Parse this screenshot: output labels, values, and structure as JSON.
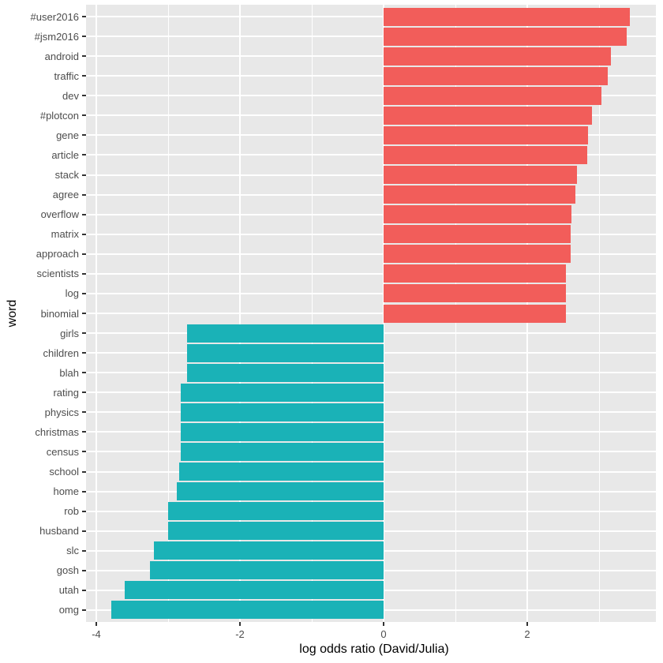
{
  "chart_data": {
    "type": "bar",
    "orientation": "horizontal",
    "xlabel": "log odds ratio (David/Julia)",
    "ylabel": "word",
    "xlim": [
      -4.14,
      3.79
    ],
    "x_major_ticks": [
      -4,
      -2,
      0,
      2
    ],
    "x_major_tick_labels": [
      "-4",
      "-2",
      "0",
      "2"
    ],
    "x_minor_ticks": [
      -3,
      -1,
      1,
      3
    ],
    "grid": "on",
    "legend": "none",
    "categories": [
      "#user2016",
      "#jsm2016",
      "android",
      "traffic",
      "dev",
      "#plotcon",
      "gene",
      "article",
      "stack",
      "agree",
      "overflow",
      "matrix",
      "approach",
      "scientists",
      "log",
      "binomial",
      "girls",
      "children",
      "blah",
      "rating",
      "physics",
      "christmas",
      "census",
      "school",
      "home",
      "rob",
      "husband",
      "slc",
      "gosh",
      "utah",
      "omg"
    ],
    "values": [
      3.43,
      3.39,
      3.16,
      3.12,
      3.03,
      2.9,
      2.85,
      2.84,
      2.69,
      2.67,
      2.61,
      2.6,
      2.6,
      2.54,
      2.54,
      2.54,
      -2.74,
      -2.74,
      -2.74,
      -2.82,
      -2.82,
      -2.82,
      -2.82,
      -2.85,
      -2.88,
      -3.0,
      -3.0,
      -3.2,
      -3.25,
      -3.6,
      -3.79
    ],
    "colors": {
      "positive_bar": "#F25D5A",
      "negative_bar": "#1AB2B7",
      "panel_background": "#E8E8E8",
      "gridline": "#FFFFFF",
      "tick_label": "#4D4D4D",
      "axis_title": "#000000",
      "tick_mark": "#333333"
    }
  }
}
